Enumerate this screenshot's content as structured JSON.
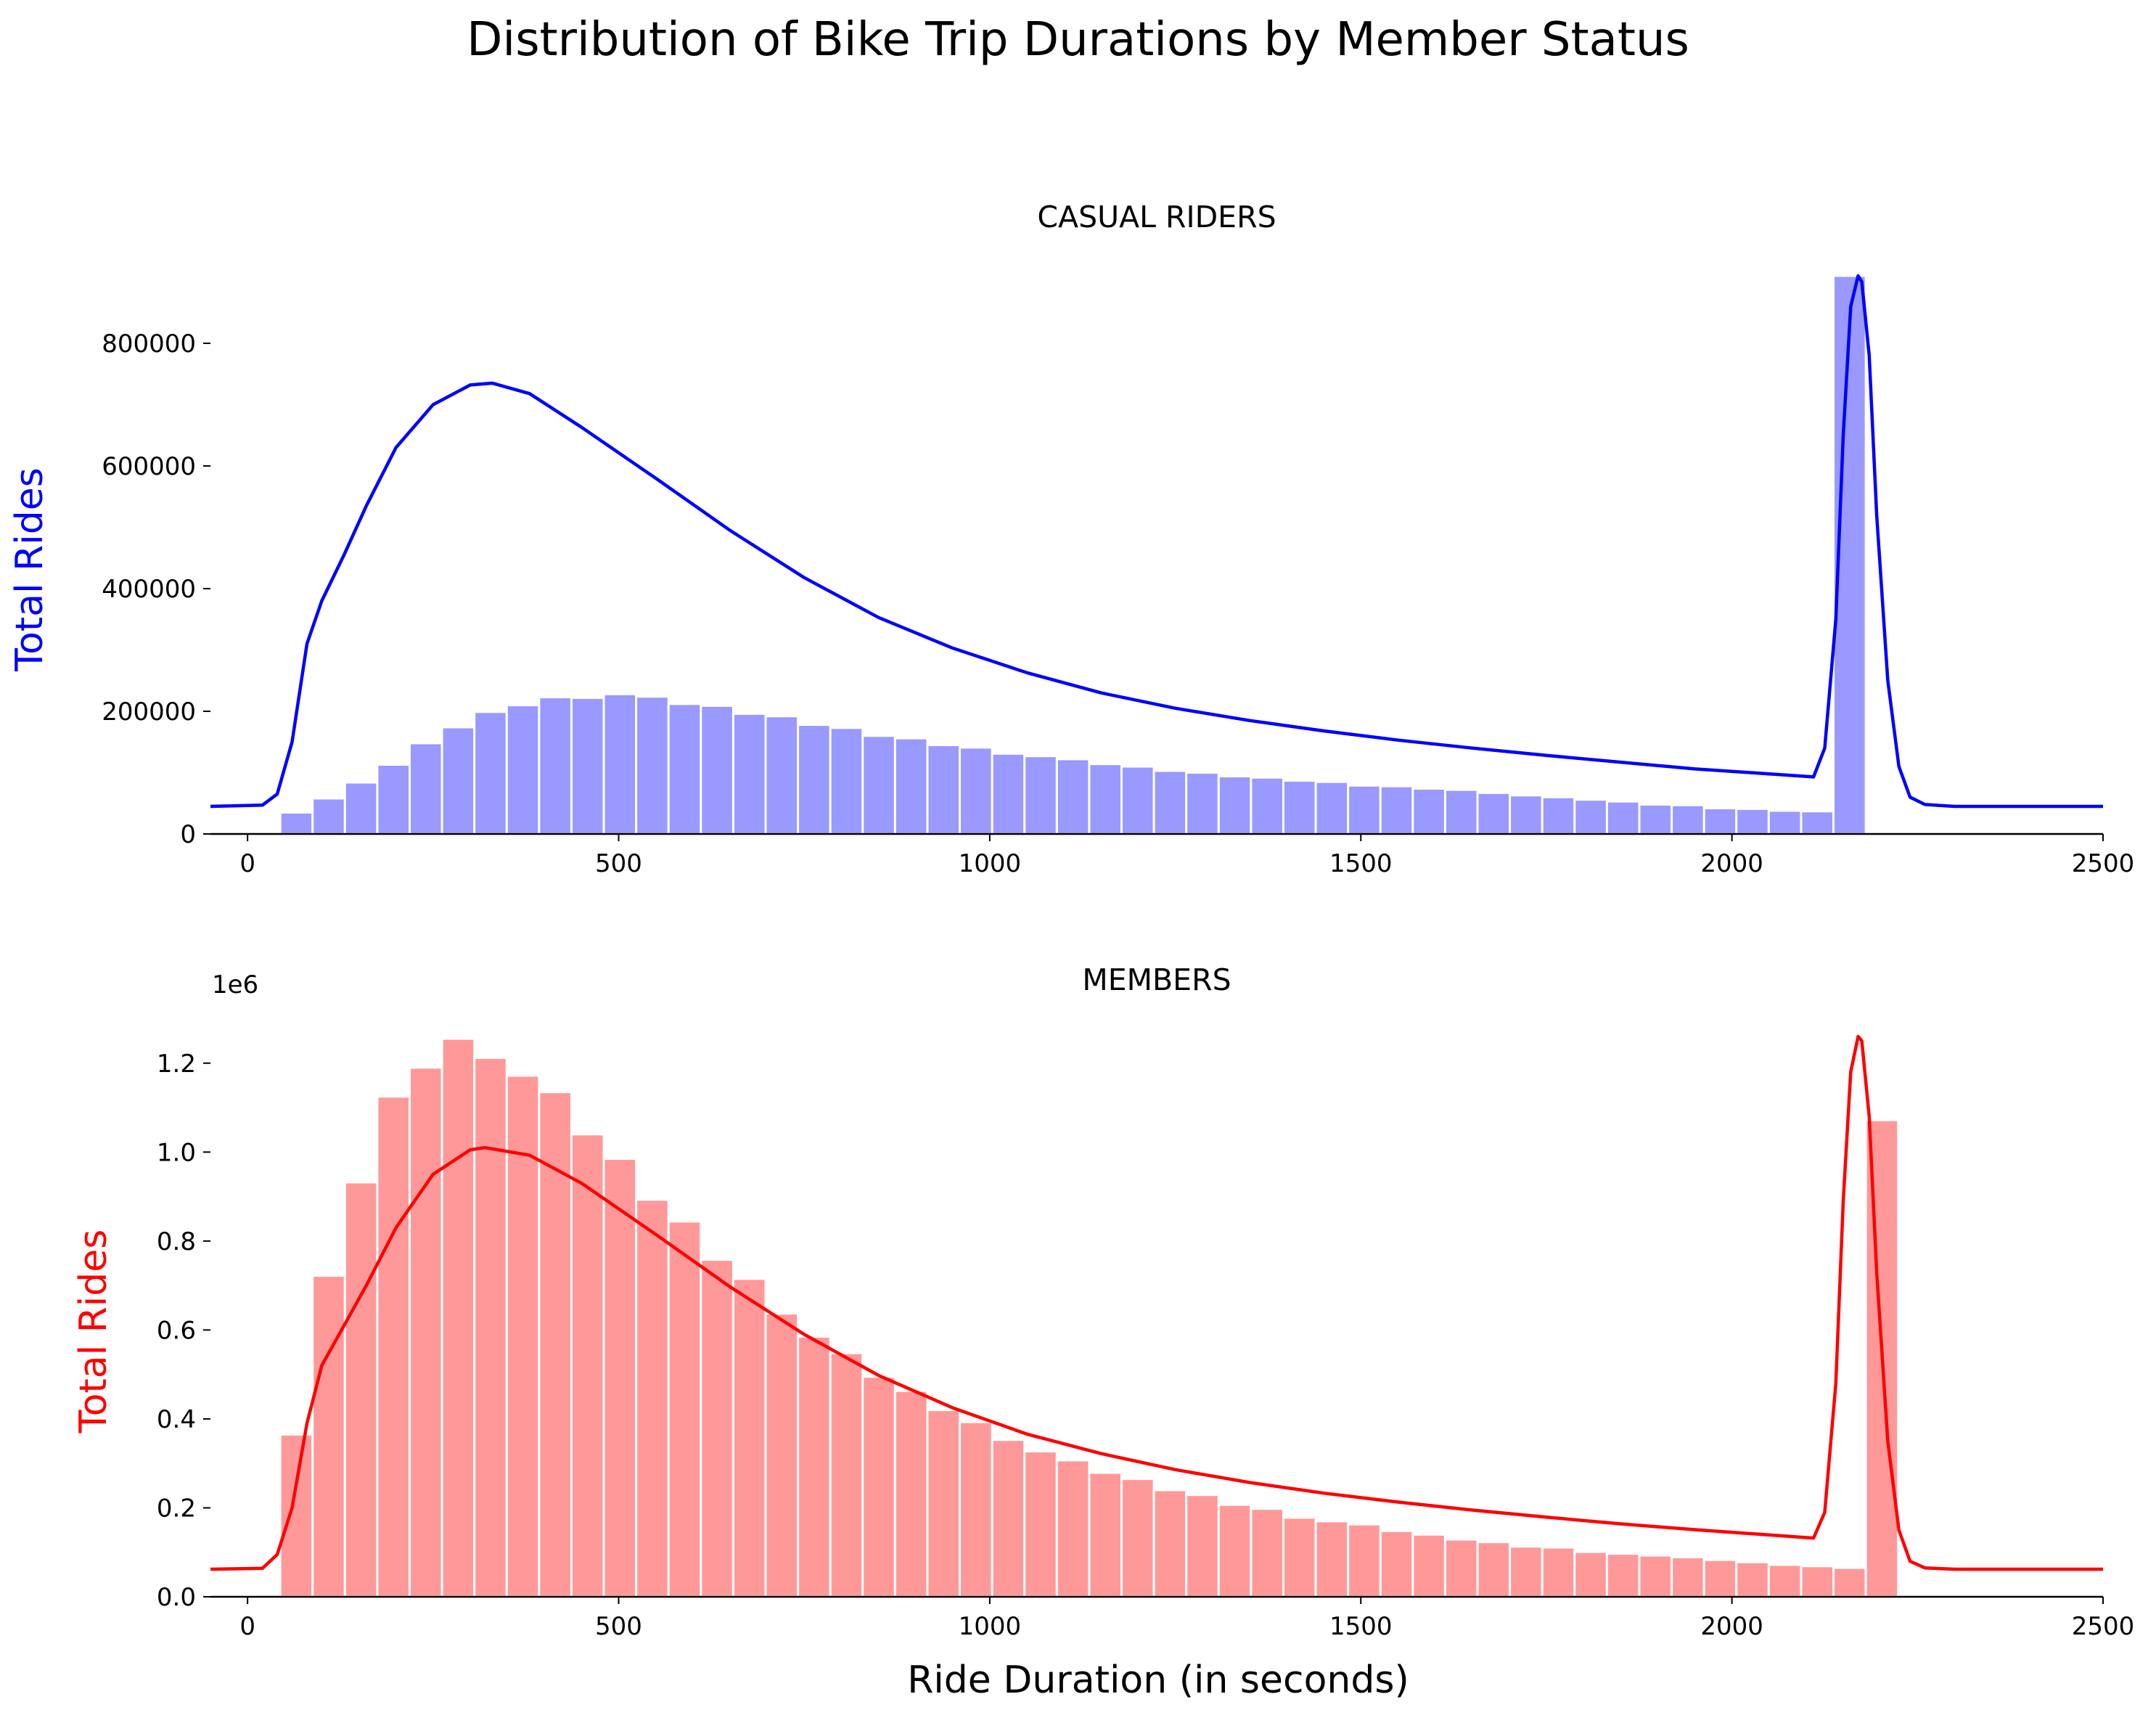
{
  "figure": {
    "title": "Distribution of Bike Trip Durations by Member Status",
    "xlabel": "Ride Duration (in seconds)"
  },
  "chart_data": [
    {
      "type": "bar",
      "title": "CASUAL RIDERS",
      "ylabel": "Total Rides",
      "ylabel_color": "#0000ff",
      "bar_color": "#9999ff",
      "line_color": "#0000ff",
      "xlim": [
        -50,
        2500
      ],
      "ylim": [
        0,
        910000
      ],
      "y_offset_label": "",
      "xticks": [
        0,
        500,
        1000,
        1500,
        2000,
        2500
      ],
      "xtick_labels": [
        "0",
        "500",
        "1000",
        "1500",
        "2000",
        "2500"
      ],
      "yticks": [
        0,
        200000,
        400000,
        600000,
        800000
      ],
      "ytick_labels": [
        "0",
        "200000",
        "400000",
        "600000",
        "800000"
      ],
      "bin_edges_start": 44,
      "bin_width": 43.6,
      "bar_values": [
        35000,
        58000,
        84000,
        113000,
        148000,
        174000,
        199000,
        210000,
        223000,
        222000,
        228000,
        224000,
        212000,
        209000,
        196000,
        192000,
        178000,
        173000,
        160000,
        156000,
        145000,
        141000,
        131000,
        127000,
        122000,
        114000,
        110000,
        103000,
        100000,
        94000,
        92000,
        87000,
        85000,
        79000,
        78000,
        74000,
        72000,
        67000,
        63000,
        60000,
        56000,
        53000,
        48000,
        47000,
        42000,
        41000,
        38000,
        37000,
        910000
      ],
      "kde_x": [
        -50,
        20,
        40,
        60,
        80,
        100,
        130,
        160,
        200,
        250,
        300,
        330,
        380,
        450,
        550,
        650,
        750,
        850,
        950,
        1050,
        1150,
        1250,
        1350,
        1450,
        1550,
        1650,
        1750,
        1850,
        1950,
        2050,
        2110,
        2125,
        2140,
        2150,
        2160,
        2170,
        2175,
        2185,
        2195,
        2210,
        2225,
        2240,
        2260,
        2300,
        2500
      ],
      "kde_y": [
        45000,
        47000,
        65000,
        150000,
        310000,
        380000,
        455000,
        535000,
        630000,
        700000,
        732000,
        735000,
        718000,
        663000,
        580000,
        495000,
        418000,
        353000,
        303000,
        263000,
        230000,
        205000,
        185000,
        168000,
        153000,
        140000,
        128000,
        117000,
        106000,
        98000,
        93000,
        140000,
        350000,
        650000,
        860000,
        910000,
        900000,
        780000,
        520000,
        250000,
        110000,
        60000,
        48000,
        45000,
        45000
      ]
    },
    {
      "type": "bar",
      "title": "MEMBERS",
      "ylabel": "Total Rides",
      "ylabel_color": "#ff0000",
      "bar_color": "#ff9999",
      "line_color": "#ff0000",
      "xlim": [
        -50,
        2500
      ],
      "ylim": [
        0,
        1260000
      ],
      "y_offset_label": "1e6",
      "xticks": [
        0,
        500,
        1000,
        1500,
        2000,
        2500
      ],
      "xtick_labels": [
        "0",
        "500",
        "1000",
        "1500",
        "2000",
        "2500"
      ],
      "yticks": [
        0,
        200000,
        400000,
        600000,
        800000,
        1000000,
        1200000
      ],
      "ytick_labels": [
        "0.0",
        "0.2",
        "0.4",
        "0.6",
        "0.8",
        "1.0",
        "1.2"
      ],
      "bin_edges_start": 44,
      "bin_width": 43.6,
      "bar_values": [
        365000,
        722000,
        932000,
        1125000,
        1190000,
        1255000,
        1212000,
        1172000,
        1135000,
        1040000,
        985000,
        893000,
        844000,
        758000,
        715000,
        637000,
        585000,
        548000,
        495000,
        463000,
        420000,
        393000,
        353000,
        327000,
        307000,
        279000,
        265000,
        240000,
        229000,
        207000,
        198000,
        178000,
        170000,
        163000,
        148000,
        140000,
        129000,
        123000,
        113000,
        111000,
        101000,
        97000,
        93000,
        89000,
        83000,
        78000,
        72000,
        69000,
        65000,
        1072000
      ],
      "kde_x": [
        -50,
        20,
        40,
        60,
        80,
        100,
        130,
        160,
        200,
        250,
        300,
        320,
        380,
        450,
        550,
        650,
        750,
        850,
        950,
        1050,
        1150,
        1250,
        1350,
        1450,
        1550,
        1650,
        1750,
        1850,
        1950,
        2050,
        2110,
        2125,
        2140,
        2150,
        2160,
        2170,
        2175,
        2185,
        2195,
        2210,
        2225,
        2240,
        2260,
        2300,
        2500
      ],
      "kde_y": [
        62000,
        64000,
        95000,
        200000,
        390000,
        520000,
        610000,
        700000,
        830000,
        950000,
        1005000,
        1010000,
        993000,
        930000,
        815000,
        697000,
        590000,
        498000,
        425000,
        366000,
        322000,
        286000,
        257000,
        233000,
        213000,
        195000,
        179000,
        164000,
        151000,
        139000,
        132000,
        190000,
        480000,
        890000,
        1180000,
        1260000,
        1250000,
        1080000,
        730000,
        350000,
        150000,
        80000,
        65000,
        62000,
        62000
      ]
    }
  ]
}
